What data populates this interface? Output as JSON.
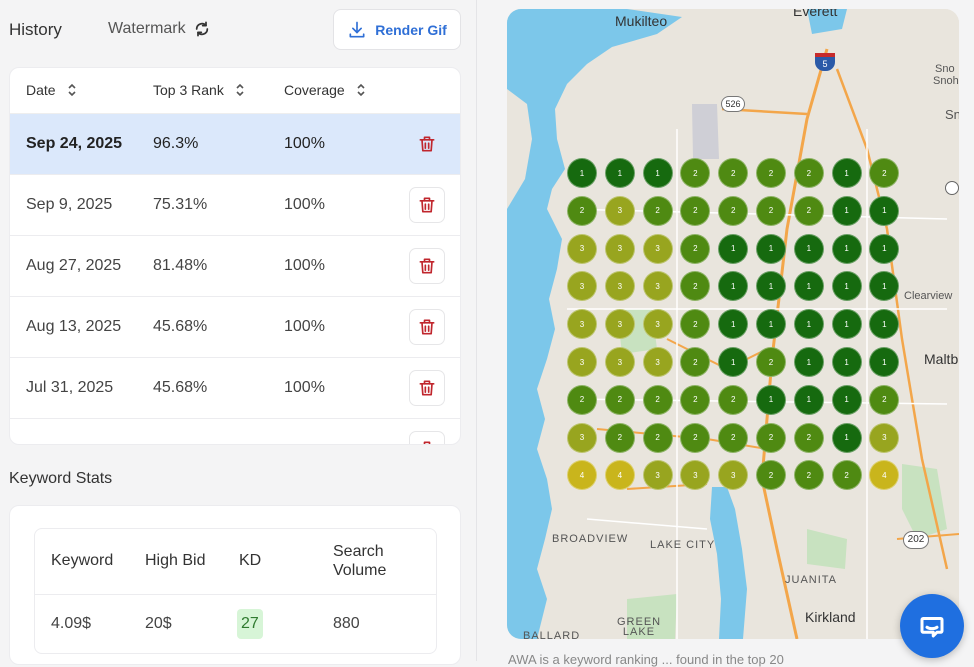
{
  "header": {
    "history_title": "History",
    "watermark_label": "Watermark",
    "render_label": "Render Gif"
  },
  "table": {
    "columns": [
      "Date",
      "Top 3 Rank",
      "Coverage"
    ],
    "rows": [
      {
        "date": "Sep 24, 2025",
        "top3": "96.3%",
        "coverage": "100%",
        "selected": true
      },
      {
        "date": "Sep 9, 2025",
        "top3": "75.31%",
        "coverage": "100%"
      },
      {
        "date": "Aug 27, 2025",
        "top3": "81.48%",
        "coverage": "100%"
      },
      {
        "date": "Aug 13, 2025",
        "top3": "45.68%",
        "coverage": "100%"
      },
      {
        "date": "Jul 31, 2025",
        "top3": "45.68%",
        "coverage": "100%"
      }
    ]
  },
  "keyword_stats": {
    "title": "Keyword Stats",
    "headers": {
      "keyword": "Keyword",
      "high_bid": "High Bid",
      "kd": "KD",
      "volume": "Search Volume"
    },
    "row": {
      "keyword": "4.09$",
      "high_bid": "20$",
      "kd": "27",
      "volume": "880"
    }
  },
  "map": {
    "places": {
      "everett": "Everett",
      "mukilteo": "Mukilteo",
      "clearview": "Clearview",
      "maltby": "Maltb",
      "broadview": "BROADVIEW",
      "lake_city": "LAKE CITY",
      "juanita": "JUANITA",
      "kirkland": "Kirkland",
      "green_lake": "GREEN LAKE",
      "ballard": "BALLARD",
      "sno": "Sno",
      "snoh": "Snoh",
      "sn": "Sn"
    },
    "shields": {
      "i5": "5",
      "r526": "526",
      "r202": "202"
    },
    "ranks": [
      [
        1,
        1,
        1,
        2,
        2,
        2,
        2,
        1,
        2
      ],
      [
        2,
        3,
        2,
        2,
        2,
        2,
        2,
        1,
        1
      ],
      [
        3,
        3,
        3,
        2,
        1,
        1,
        1,
        1,
        1
      ],
      [
        3,
        3,
        3,
        2,
        1,
        1,
        1,
        1,
        1
      ],
      [
        3,
        3,
        3,
        2,
        1,
        1,
        1,
        1,
        1
      ],
      [
        3,
        3,
        3,
        2,
        1,
        2,
        1,
        1,
        1
      ],
      [
        2,
        2,
        2,
        2,
        2,
        1,
        1,
        1,
        2
      ],
      [
        3,
        2,
        2,
        2,
        2,
        2,
        2,
        1,
        3
      ],
      [
        4,
        4,
        3,
        3,
        3,
        2,
        2,
        2,
        4
      ]
    ],
    "rank_colors": {
      "1": "#166a0f",
      "2": "#4f8a12",
      "3": "#98a51f",
      "4": "#c9b51c"
    }
  },
  "caption": "AWA is a keyword ranking ... found in the top 20"
}
